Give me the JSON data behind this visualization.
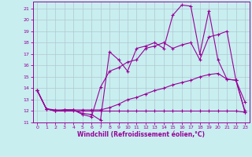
{
  "xlabel": "Windchill (Refroidissement éolien,°C)",
  "background_color": "#c8eef0",
  "line_color": "#990099",
  "xlim": [
    -0.5,
    23.5
  ],
  "ylim": [
    11,
    21.6
  ],
  "xticks": [
    0,
    1,
    2,
    3,
    4,
    5,
    6,
    7,
    8,
    9,
    10,
    11,
    12,
    13,
    14,
    15,
    16,
    17,
    18,
    19,
    20,
    21,
    22,
    23
  ],
  "yticks": [
    11,
    12,
    13,
    14,
    15,
    16,
    17,
    18,
    19,
    20,
    21
  ],
  "grid_color": "#b0c8d0",
  "line1_x": [
    0,
    1,
    2,
    3,
    4,
    5,
    6,
    7,
    8,
    9,
    10,
    11,
    12,
    13,
    14,
    15,
    16,
    17,
    18,
    19,
    20,
    21,
    22,
    23
  ],
  "line1_y": [
    13.8,
    12.2,
    12.0,
    12.1,
    12.1,
    11.8,
    11.7,
    11.2,
    17.2,
    16.5,
    15.5,
    17.5,
    17.7,
    18.0,
    17.5,
    20.4,
    21.3,
    21.2,
    17.0,
    20.8,
    16.5,
    14.8,
    14.7,
    12.8
  ],
  "line2_x": [
    0,
    1,
    2,
    3,
    4,
    5,
    6,
    7,
    8,
    9,
    10,
    11,
    12,
    13,
    14,
    15,
    16,
    17,
    18,
    19,
    20,
    21,
    22,
    23
  ],
  "line2_y": [
    13.8,
    12.2,
    12.0,
    12.1,
    12.1,
    11.7,
    11.5,
    14.1,
    15.5,
    15.8,
    16.3,
    16.5,
    17.5,
    17.7,
    18.0,
    17.5,
    17.8,
    18.0,
    16.5,
    18.5,
    18.7,
    19.0,
    14.7,
    11.9
  ],
  "line3_x": [
    0,
    1,
    2,
    3,
    4,
    5,
    6,
    7,
    8,
    9,
    10,
    11,
    12,
    13,
    14,
    15,
    16,
    17,
    18,
    19,
    20,
    21,
    22,
    23
  ],
  "line3_y": [
    13.8,
    12.2,
    12.1,
    12.1,
    12.1,
    12.1,
    12.1,
    12.1,
    12.3,
    12.6,
    13.0,
    13.2,
    13.5,
    13.8,
    14.0,
    14.3,
    14.5,
    14.7,
    15.0,
    15.2,
    15.3,
    14.8,
    14.7,
    12.0
  ],
  "line4_x": [
    0,
    1,
    2,
    3,
    4,
    5,
    6,
    7,
    8,
    9,
    10,
    11,
    12,
    13,
    14,
    15,
    16,
    17,
    18,
    19,
    20,
    21,
    22,
    23
  ],
  "line4_y": [
    13.8,
    12.2,
    12.0,
    12.0,
    12.0,
    12.0,
    12.0,
    12.0,
    12.0,
    12.0,
    12.0,
    12.0,
    12.0,
    12.0,
    12.0,
    12.0,
    12.0,
    12.0,
    12.0,
    12.0,
    12.0,
    12.0,
    12.0,
    11.9
  ]
}
